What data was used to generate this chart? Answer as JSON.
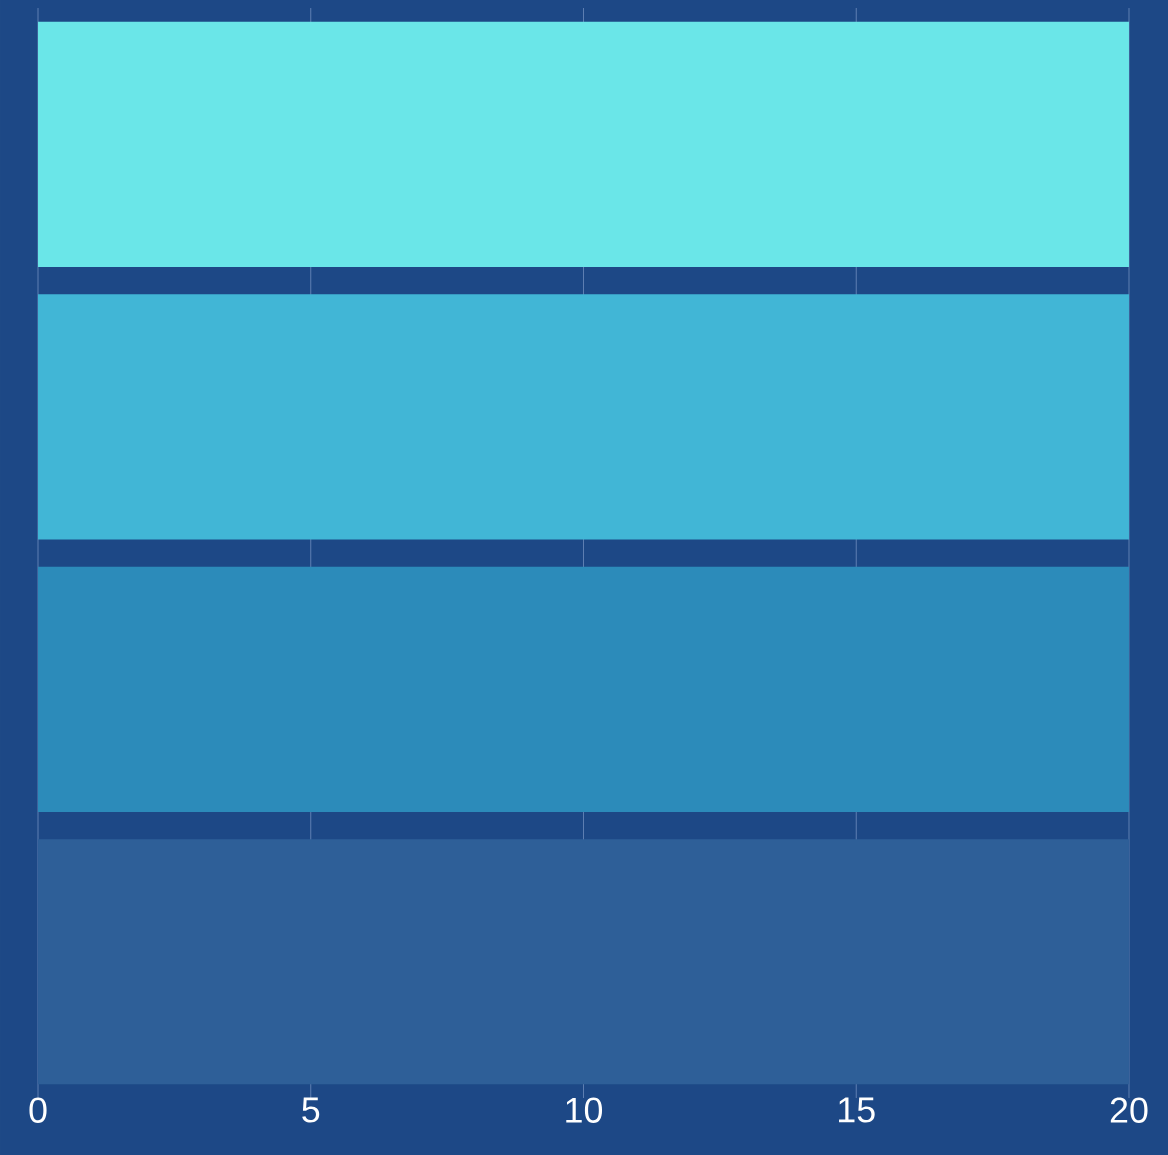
{
  "chart_data": {
    "type": "bar",
    "orientation": "horizontal",
    "categories": [
      null,
      null,
      null,
      null
    ],
    "values": [
      20,
      20,
      20,
      20
    ],
    "colors": [
      "#6ae6e8",
      "#41b6d6",
      "#2c8bba",
      "#2e5f98"
    ],
    "xlim": [
      0,
      20
    ],
    "xticks": [
      0,
      5,
      10,
      15,
      20
    ],
    "grid": "x"
  }
}
